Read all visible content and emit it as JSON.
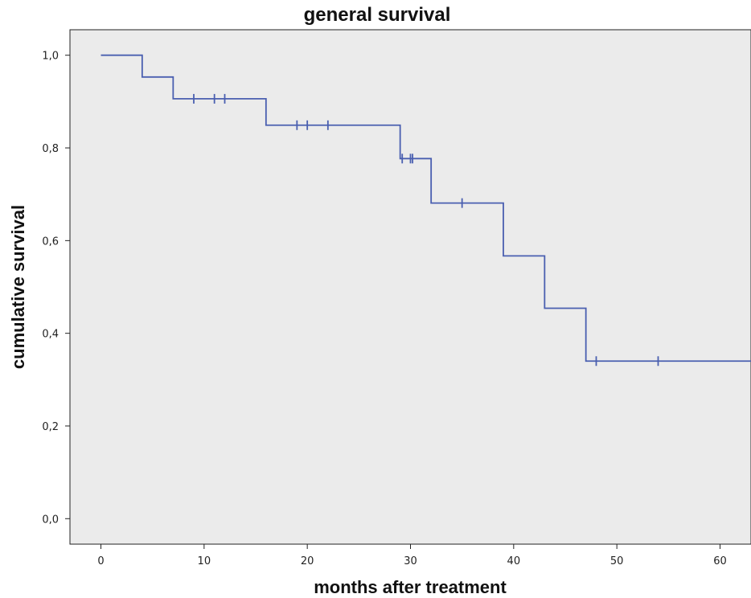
{
  "chart_data": {
    "type": "line",
    "subtype": "kaplan-meier step",
    "title": "general survival",
    "xlabel": "months after treatment",
    "ylabel": "cumulative survival",
    "xlim": [
      -3,
      63
    ],
    "ylim": [
      -0.055,
      1.055
    ],
    "x_ticks": [
      0,
      10,
      20,
      30,
      40,
      50,
      60
    ],
    "x_tick_labels": [
      "0",
      "10",
      "20",
      "30",
      "40",
      "50",
      "60"
    ],
    "y_ticks": [
      0.0,
      0.2,
      0.4,
      0.6,
      0.8,
      1.0
    ],
    "y_tick_labels": [
      "0,0",
      "0,2",
      "0,4",
      "0,6",
      "0,8",
      "1,0"
    ],
    "grid": false,
    "legend": "none",
    "colors": {
      "line": "#4a5fb0",
      "plot_background": "#ebebeb",
      "axis": "#222222"
    },
    "series": [
      {
        "steps": [
          {
            "x": 0,
            "y": 1.0
          },
          {
            "x": 4,
            "y": 0.953
          },
          {
            "x": 7,
            "y": 0.906
          },
          {
            "x": 16,
            "y": 0.849
          },
          {
            "x": 29,
            "y": 0.777
          },
          {
            "x": 32,
            "y": 0.681
          },
          {
            "x": 39,
            "y": 0.567
          },
          {
            "x": 43,
            "y": 0.454
          },
          {
            "x": 47,
            "y": 0.34
          }
        ],
        "x_end": 63,
        "censored": [
          {
            "x": 9,
            "y": 0.906
          },
          {
            "x": 11,
            "y": 0.906
          },
          {
            "x": 12,
            "y": 0.906
          },
          {
            "x": 19,
            "y": 0.849
          },
          {
            "x": 20,
            "y": 0.849
          },
          {
            "x": 22,
            "y": 0.849
          },
          {
            "x": 29.2,
            "y": 0.777
          },
          {
            "x": 30,
            "y": 0.777
          },
          {
            "x": 30.2,
            "y": 0.777
          },
          {
            "x": 35,
            "y": 0.681
          },
          {
            "x": 48,
            "y": 0.34
          },
          {
            "x": 54,
            "y": 0.34
          }
        ]
      }
    ]
  }
}
